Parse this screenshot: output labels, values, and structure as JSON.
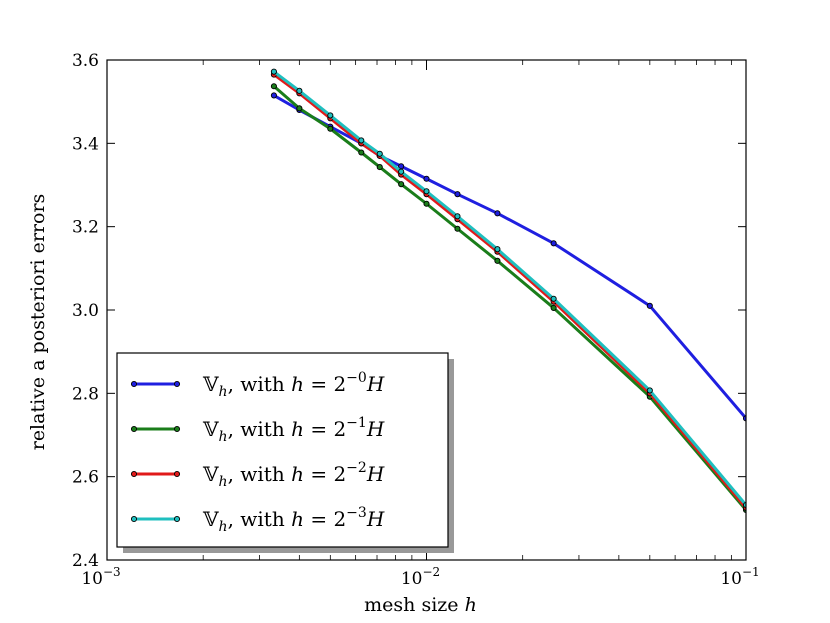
{
  "chart_data": {
    "type": "line",
    "xlabel": "mesh size",
    "xlabel_var": "h",
    "ylabel": "relative a posteriori errors",
    "x_scale": "log",
    "xlim": [
      0.001,
      0.1
    ],
    "ylim": [
      2.4,
      3.6
    ],
    "x_ticks": [
      {
        "value": 0.001,
        "base": "10",
        "exp": "−3"
      },
      {
        "value": 0.01,
        "base": "10",
        "exp": "−2"
      },
      {
        "value": 0.1,
        "base": "10",
        "exp": "−1"
      }
    ],
    "y_ticks": [
      {
        "value": 2.4,
        "label": "2.4"
      },
      {
        "value": 2.6,
        "label": "2.6"
      },
      {
        "value": 2.8,
        "label": "2.8"
      },
      {
        "value": 3.0,
        "label": "3.0"
      },
      {
        "value": 3.2,
        "label": "3.2"
      },
      {
        "value": 3.4,
        "label": "3.4"
      },
      {
        "value": 3.6,
        "label": "3.6"
      }
    ],
    "grid": false,
    "legend_position": "lower-left",
    "series": [
      {
        "name": "𝕍h, with h = 2−0H",
        "legend": {
          "exp": "−0"
        },
        "color": "#1f1fe0",
        "x": [
          0.00333,
          0.004,
          0.005,
          0.00625,
          0.00714,
          0.00833,
          0.01,
          0.0125,
          0.01667,
          0.025,
          0.05,
          0.1
        ],
        "y": [
          3.515,
          3.48,
          3.44,
          3.4,
          3.37,
          3.345,
          3.315,
          3.278,
          3.232,
          3.16,
          3.01,
          2.74
        ]
      },
      {
        "name": "𝕍h, with h = 2−1H",
        "legend": {
          "exp": "−1"
        },
        "color": "#1a7d1a",
        "x": [
          0.00333,
          0.004,
          0.005,
          0.00625,
          0.00714,
          0.00833,
          0.01,
          0.0125,
          0.01667,
          0.025,
          0.05,
          0.1
        ],
        "y": [
          3.537,
          3.484,
          3.435,
          3.378,
          3.343,
          3.302,
          3.255,
          3.195,
          3.118,
          3.005,
          2.792,
          2.52
        ]
      },
      {
        "name": "𝕍h, with h = 2−2H",
        "legend": {
          "exp": "−2"
        },
        "color": "#e01a1a",
        "x": [
          0.00333,
          0.004,
          0.005,
          0.00625,
          0.00714,
          0.00833,
          0.01,
          0.0125,
          0.01667,
          0.025,
          0.05,
          0.1
        ],
        "y": [
          3.565,
          3.52,
          3.46,
          3.4,
          3.37,
          3.325,
          3.278,
          3.218,
          3.14,
          3.02,
          2.8,
          2.525
        ]
      },
      {
        "name": "𝕍h, with h = 2−3H",
        "legend": {
          "exp": "−3"
        },
        "color": "#1fbfbf",
        "x": [
          0.00333,
          0.004,
          0.005,
          0.00625,
          0.00714,
          0.00833,
          0.01,
          0.0125,
          0.01667,
          0.025,
          0.05,
          0.1
        ],
        "y": [
          3.572,
          3.526,
          3.467,
          3.407,
          3.375,
          3.332,
          3.285,
          3.225,
          3.146,
          3.027,
          2.807,
          2.532
        ]
      }
    ]
  }
}
